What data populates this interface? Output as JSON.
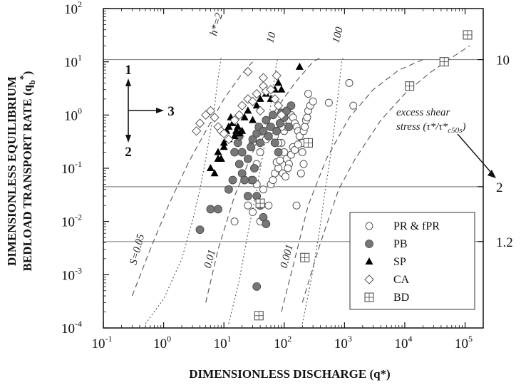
{
  "chart_data": {
    "type": "scatter",
    "xlabel": "DIMENSIONLESS DISCHARGE (q*)",
    "ylabel_line1": "DIMENSIONLESS EQUILIBRIUM",
    "ylabel_line2": "BEDLOAD TRANSPORT RATE (q",
    "ylabel_sub": "b",
    "ylabel_sup": "*",
    "ylabel_close": ")",
    "x_scale": "log",
    "y_scale": "log",
    "xlim": [
      0.1,
      200000
    ],
    "ylim": [
      0.0001,
      100
    ],
    "x_tick_labels": [
      {
        "base": "10",
        "exp": "-1",
        "value": 0.1
      },
      {
        "base": "10",
        "exp": "0",
        "value": 1
      },
      {
        "base": "10",
        "exp": "1",
        "value": 10
      },
      {
        "base": "10",
        "exp": "2",
        "value": 100
      },
      {
        "base": "10",
        "exp": "3",
        "value": 1000
      },
      {
        "base": "10",
        "exp": "4",
        "value": 10000
      },
      {
        "base": "10",
        "exp": "5",
        "value": 100000
      }
    ],
    "y_tick_labels": [
      {
        "base": "10",
        "exp": "-4",
        "value": 0.0001
      },
      {
        "base": "10",
        "exp": "-3",
        "value": 0.001
      },
      {
        "base": "10",
        "exp": "-2",
        "value": 0.01
      },
      {
        "base": "10",
        "exp": "-1",
        "value": 0.1
      },
      {
        "base": "10",
        "exp": "0",
        "value": 1
      },
      {
        "base": "10",
        "exp": "1",
        "value": 10
      },
      {
        "base": "10",
        "exp": "2",
        "value": 100
      }
    ],
    "right_axis_labels": [
      {
        "text": "10",
        "y": 11
      },
      {
        "text": "2",
        "y": 0.045
      },
      {
        "text": "1.2",
        "y": 0.0042
      }
    ],
    "excess_shear_label": "excess shear",
    "excess_shear_label2": "stress (τ*/τ*",
    "excess_shear_sub": "c50s",
    "excess_shear_close": ")",
    "h_labels": [
      {
        "text": "h*=2",
        "x": 7.5,
        "y": 30
      },
      {
        "text": "10",
        "x": 65,
        "y": 22
      },
      {
        "text": "100",
        "x": 800,
        "y": 22
      }
    ],
    "s_labels": [
      {
        "text": "S=0.05",
        "x": 0.35,
        "y": 0.0015
      },
      {
        "text": "0.01",
        "x": 6,
        "y": 0.0013
      },
      {
        "text": "0.001",
        "x": 110,
        "y": 0.0013
      }
    ],
    "direction_labels": {
      "one": "1",
      "two": "2",
      "three": "3"
    },
    "legend": [
      {
        "name": "PR & fPR",
        "marker": "open-circle"
      },
      {
        "name": "PB",
        "marker": "gray-circle"
      },
      {
        "name": "SP",
        "marker": "filled-triangle"
      },
      {
        "name": "CA",
        "marker": "open-diamond"
      },
      {
        "name": "BD",
        "marker": "boxed-plus"
      }
    ],
    "series": [
      {
        "name": "PR & fPR",
        "marker": "open-circle",
        "points": [
          [
            15,
            0.01
          ],
          [
            25,
            0.02
          ],
          [
            30,
            0.015
          ],
          [
            40,
            0.01
          ],
          [
            45,
            0.04
          ],
          [
            55,
            0.02
          ],
          [
            60,
            0.05
          ],
          [
            70,
            0.08
          ],
          [
            80,
            0.1
          ],
          [
            90,
            0.3
          ],
          [
            100,
            0.5
          ],
          [
            110,
            0.6
          ],
          [
            120,
            0.8
          ],
          [
            130,
            1.0
          ],
          [
            140,
            0.9
          ],
          [
            150,
            0.7
          ],
          [
            160,
            0.6
          ],
          [
            170,
            0.5
          ],
          [
            180,
            0.4
          ],
          [
            190,
            0.3
          ],
          [
            200,
            0.3
          ],
          [
            210,
            0.5
          ],
          [
            220,
            0.6
          ],
          [
            230,
            0.8
          ],
          [
            240,
            0.9
          ],
          [
            250,
            1.2
          ],
          [
            270,
            1.5
          ],
          [
            300,
            1.8
          ],
          [
            100,
            0.2
          ],
          [
            110,
            0.15
          ],
          [
            120,
            0.12
          ],
          [
            130,
            0.18
          ],
          [
            140,
            0.25
          ],
          [
            150,
            0.22
          ],
          [
            170,
            0.28
          ],
          [
            200,
            0.2
          ],
          [
            210,
            0.12
          ],
          [
            190,
            0.08
          ],
          [
            250,
            2.5
          ],
          [
            550,
            1.7
          ],
          [
            1200,
            4
          ],
          [
            1400,
            1.5
          ],
          [
            90,
            0.6
          ],
          [
            80,
            0.3
          ],
          [
            70,
            0.4
          ],
          [
            60,
            0.6
          ],
          [
            50,
            0.35
          ],
          [
            45,
            0.5
          ],
          [
            40,
            0.2
          ],
          [
            35,
            0.12
          ],
          [
            30,
            0.3
          ],
          [
            28,
            0.06
          ],
          [
            35,
            0.05
          ],
          [
            65,
            0.06
          ],
          [
            75,
            0.13
          ],
          [
            85,
            0.14
          ],
          [
            95,
            0.08
          ],
          [
            105,
            0.07
          ],
          [
            115,
            0.1
          ],
          [
            160,
            0.02
          ]
        ]
      },
      {
        "name": "PB",
        "marker": "gray-circle",
        "points": [
          [
            4,
            0.007
          ],
          [
            6,
            0.017
          ],
          [
            8,
            0.017
          ],
          [
            12,
            0.04
          ],
          [
            14,
            0.06
          ],
          [
            15,
            0.2
          ],
          [
            17,
            0.3
          ],
          [
            18,
            0.12
          ],
          [
            20,
            0.08
          ],
          [
            22,
            0.06
          ],
          [
            25,
            0.15
          ],
          [
            28,
            0.25
          ],
          [
            30,
            0.35
          ],
          [
            32,
            0.1
          ],
          [
            35,
            0.45
          ],
          [
            38,
            0.6
          ],
          [
            40,
            0.3
          ],
          [
            45,
            0.5
          ],
          [
            50,
            0.8
          ],
          [
            55,
            0.4
          ],
          [
            60,
            0.6
          ],
          [
            65,
            1.0
          ],
          [
            70,
            0.3
          ],
          [
            75,
            0.5
          ],
          [
            80,
            0.2
          ],
          [
            85,
            0.7
          ],
          [
            90,
            1.1
          ],
          [
            100,
            0.9
          ],
          [
            110,
            1.2
          ],
          [
            120,
            0.6
          ],
          [
            130,
            1.5
          ],
          [
            40,
            0.02
          ],
          [
            45,
            0.012
          ],
          [
            50,
            0.009
          ],
          [
            35,
            0.03
          ],
          [
            25,
            0.03
          ],
          [
            30,
            0.06
          ],
          [
            20,
            0.2
          ],
          [
            18,
            0.4
          ],
          [
            35,
            0.0006
          ]
        ]
      },
      {
        "name": "SP",
        "marker": "filled-triangle",
        "points": [
          [
            6,
            0.1
          ],
          [
            7,
            0.08
          ],
          [
            8,
            0.2
          ],
          [
            9,
            0.15
          ],
          [
            10,
            0.3
          ],
          [
            11,
            0.5
          ],
          [
            12,
            0.6
          ],
          [
            13,
            0.9
          ],
          [
            14,
            0.7
          ],
          [
            15,
            0.4
          ],
          [
            16,
            0.5
          ],
          [
            17,
            0.6
          ],
          [
            18,
            0.45
          ],
          [
            20,
            0.5
          ],
          [
            22,
            0.9
          ],
          [
            25,
            1.2
          ],
          [
            30,
            0.8
          ],
          [
            35,
            1.5
          ],
          [
            40,
            2.0
          ],
          [
            50,
            2.5
          ],
          [
            60,
            2.0
          ],
          [
            70,
            3.0
          ],
          [
            80,
            4.0
          ],
          [
            90,
            3.0
          ],
          [
            180,
            8
          ],
          [
            8,
            0.15
          ],
          [
            10,
            0.25
          ],
          [
            12,
            0.35
          ]
        ]
      },
      {
        "name": "CA",
        "marker": "open-diamond",
        "points": [
          [
            3.5,
            0.5
          ],
          [
            4,
            0.7
          ],
          [
            5,
            1.0
          ],
          [
            6,
            1.2
          ],
          [
            7,
            0.9
          ],
          [
            8,
            0.6
          ],
          [
            9,
            0.5
          ],
          [
            10,
            0.45
          ],
          [
            12,
            0.35
          ],
          [
            15,
            0.8
          ],
          [
            18,
            1.0
          ],
          [
            20,
            1.5
          ],
          [
            25,
            2.0
          ],
          [
            30,
            1.8
          ],
          [
            35,
            2.5
          ],
          [
            40,
            1.2
          ],
          [
            45,
            3.5
          ],
          [
            50,
            2.8
          ],
          [
            60,
            3.0
          ],
          [
            70,
            2.0
          ],
          [
            80,
            1.5
          ],
          [
            90,
            1.0
          ],
          [
            25,
            6.5
          ],
          [
            45,
            5
          ],
          [
            75,
            5.5
          ]
        ]
      },
      {
        "name": "BD",
        "marker": "boxed-plus",
        "points": [
          [
            110000,
            32
          ],
          [
            45000,
            10
          ],
          [
            12000,
            3.5
          ],
          [
            250,
            0.3
          ],
          [
            220,
            0.0021
          ],
          [
            40,
            0.022
          ],
          [
            38,
            0.00017
          ]
        ]
      }
    ],
    "h_curves": [
      [
        [
          0.5,
          0.00012
        ],
        [
          1,
          0.00035
        ],
        [
          2,
          0.002
        ],
        [
          3,
          0.01
        ],
        [
          4,
          0.04
        ],
        [
          5,
          0.15
        ],
        [
          6,
          0.5
        ],
        [
          7,
          1.5
        ],
        [
          8,
          5
        ],
        [
          9,
          12
        ]
      ],
      [
        [
          12,
          0.00012
        ],
        [
          18,
          0.0008
        ],
        [
          25,
          0.006
        ],
        [
          35,
          0.04
        ],
        [
          45,
          0.2
        ],
        [
          55,
          0.8
        ],
        [
          65,
          3
        ],
        [
          75,
          10
        ],
        [
          80,
          12
        ]
      ],
      [
        [
          200,
          0.00012
        ],
        [
          280,
          0.0008
        ],
        [
          380,
          0.006
        ],
        [
          480,
          0.04
        ],
        [
          600,
          0.2
        ],
        [
          700,
          0.8
        ],
        [
          800,
          3
        ],
        [
          900,
          10
        ],
        [
          950,
          12
        ]
      ]
    ],
    "s_curves": [
      [
        [
          0.3,
          0.0004
        ],
        [
          0.6,
          0.003
        ],
        [
          1.2,
          0.02
        ],
        [
          2.5,
          0.12
        ],
        [
          5,
          0.5
        ],
        [
          10,
          2
        ],
        [
          20,
          6
        ],
        [
          30,
          10
        ]
      ],
      [
        [
          5,
          0.0003
        ],
        [
          8,
          0.003
        ],
        [
          15,
          0.03
        ],
        [
          30,
          0.2
        ],
        [
          70,
          1.2
        ],
        [
          150,
          4
        ],
        [
          300,
          10
        ],
        [
          400,
          12
        ]
      ],
      [
        [
          90,
          0.0002
        ],
        [
          150,
          0.002
        ],
        [
          250,
          0.02
        ],
        [
          500,
          0.15
        ],
        [
          1200,
          0.9
        ],
        [
          3000,
          3
        ],
        [
          8000,
          7
        ],
        [
          20000,
          11
        ]
      ],
      [
        [
          200,
          0.0003
        ],
        [
          400,
          0.004
        ],
        [
          800,
          0.04
        ],
        [
          1500,
          0.15
        ],
        [
          4000,
          0.8
        ],
        [
          10000,
          2.5
        ],
        [
          25000,
          6
        ],
        [
          60000,
          12
        ],
        [
          120000,
          20
        ]
      ]
    ],
    "h_lines": [
      11,
      0.045,
      0.0042
    ]
  }
}
